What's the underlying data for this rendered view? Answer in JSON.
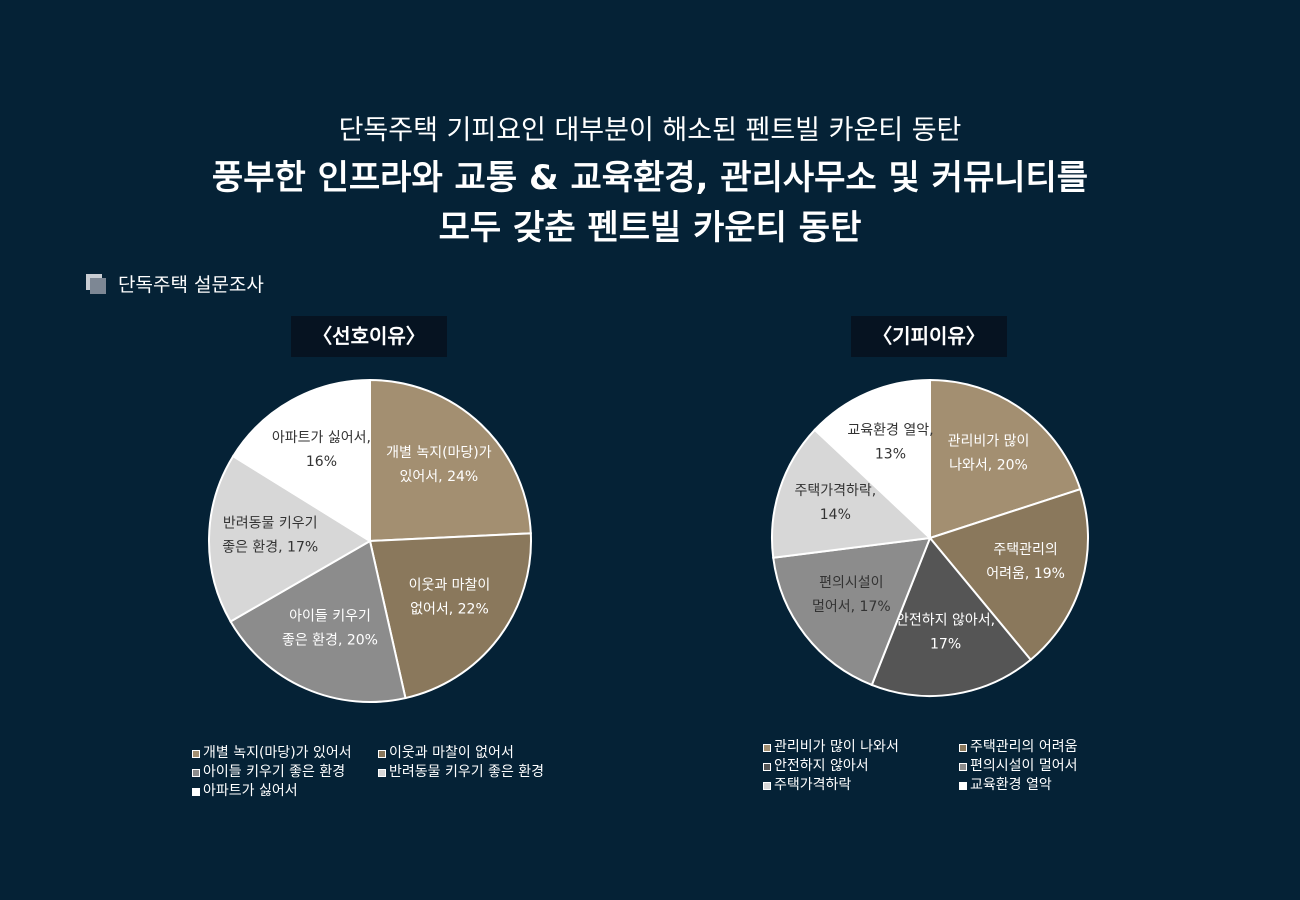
{
  "heading": {
    "subtitle": "단독주택 기피요인 대부분이 해소된 펜트빌 카운티 동탄",
    "title_line1": "풍부한 인프라와 교통 & 교육환경, 관리사무소 및 커뮤니티를",
    "title_line2": "모두 갖춘 펜트빌 카운티 동탄"
  },
  "section": {
    "label": "단독주택 설문조사"
  },
  "chart_data": [
    {
      "type": "pie",
      "title": "〈선호이유〉",
      "legend_position": "bottom",
      "labels": [
        "개별 녹지(마당)가 있어서",
        "이웃과 마찰이 없어서",
        "아이들 키우기 좋은 환경",
        "반려동물 키우기 좋은 환경",
        "아파트가 싫어서"
      ],
      "values": [
        24,
        22,
        20,
        17,
        16
      ],
      "slice_labels": [
        [
          "개별 녹지(마당)가",
          "있어서, 24%"
        ],
        [
          "이웃과 마찰이",
          "없어서, 22%"
        ],
        [
          "아이들 키우기",
          "좋은 환경, 20%"
        ],
        [
          "반려동물 키우기",
          "좋은 환경, 17%"
        ],
        [
          "아파트가 싫어서,",
          "16%"
        ]
      ],
      "colors": [
        "#a38f71",
        "#8a785c",
        "#8c8c8c",
        "#d7d7d7",
        "#ffffff"
      ],
      "label_colors": [
        "#ffffff",
        "#ffffff",
        "#ffffff",
        "#333333",
        "#333333"
      ]
    },
    {
      "type": "pie",
      "title": "〈기피이유〉",
      "legend_position": "bottom",
      "labels": [
        "관리비가 많이 나와서",
        "주택관리의 어려움",
        "안전하지 않아서",
        "편의시설이 멀어서",
        "주택가격하락",
        "교육환경 열악"
      ],
      "values": [
        20,
        19,
        17,
        17,
        14,
        13
      ],
      "slice_labels": [
        [
          "관리비가 많이",
          "나와서, 20%"
        ],
        [
          "주택관리의",
          "어려움, 19%"
        ],
        [
          "안전하지 않아서,",
          "17%"
        ],
        [
          "편의시설이",
          "멀어서, 17%"
        ],
        [
          "주택가격하락,",
          "14%"
        ],
        [
          "교육환경 열악,",
          "13%"
        ]
      ],
      "colors": [
        "#a38f71",
        "#8a785c",
        "#555555",
        "#8c8c8c",
        "#d7d7d7",
        "#ffffff"
      ],
      "label_colors": [
        "#ffffff",
        "#ffffff",
        "#ffffff",
        "#333333",
        "#333333",
        "#333333"
      ]
    }
  ]
}
